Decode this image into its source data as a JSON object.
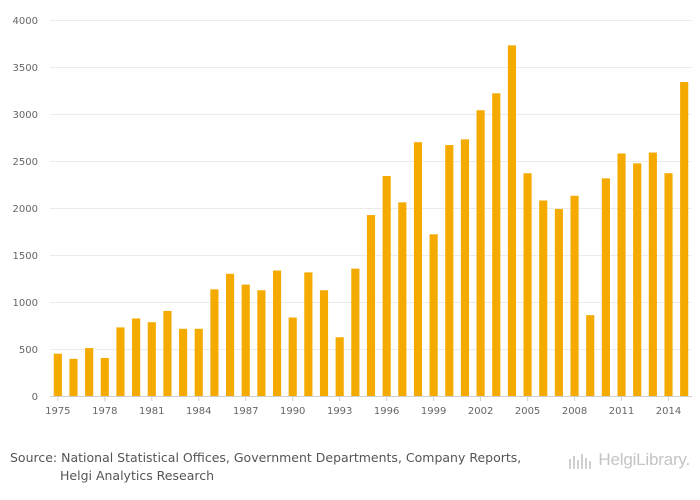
{
  "chart_data": {
    "type": "bar",
    "title": "",
    "xlabel": "",
    "ylabel": "",
    "ylim": [
      0,
      4000
    ],
    "yticks": [
      0,
      500,
      1000,
      1500,
      2000,
      2500,
      3000,
      3500,
      4000
    ],
    "xtick_labels": [
      "1975",
      "1978",
      "1981",
      "1984",
      "1987",
      "1990",
      "1993",
      "1996",
      "1999",
      "2002",
      "2005",
      "2008",
      "2011",
      "2014"
    ],
    "grid": true,
    "bar_color": "#f5aa00",
    "categories": [
      "1975",
      "1976",
      "1977",
      "1978",
      "1979",
      "1980",
      "1981",
      "1982",
      "1983",
      "1984",
      "1985",
      "1986",
      "1987",
      "1988",
      "1989",
      "1990",
      "1991",
      "1992",
      "1993",
      "1994",
      "1995",
      "1996",
      "1997",
      "1998",
      "1999",
      "2000",
      "2001",
      "2002",
      "2003",
      "2004",
      "2005",
      "2006",
      "2007",
      "2008",
      "2009",
      "2010",
      "2011",
      "2012",
      "2013",
      "2014",
      "2015"
    ],
    "values": [
      450,
      395,
      510,
      405,
      730,
      825,
      785,
      905,
      715,
      715,
      1135,
      1300,
      1185,
      1125,
      1335,
      835,
      1315,
      1125,
      625,
      1355,
      1925,
      2340,
      2060,
      2700,
      1720,
      2670,
      2730,
      3040,
      3220,
      3730,
      2370,
      2080,
      1990,
      2130,
      860,
      2315,
      2580,
      2475,
      2590,
      2370,
      3340
    ]
  },
  "footer": {
    "source_line1": "Source: National Statistical Offices, Government Departments, Company Reports,",
    "source_line2": "Helgi Analytics Research",
    "brand_name": "HelgiLibrary.",
    "brand_icon": "helgi-library-logo-icon"
  }
}
